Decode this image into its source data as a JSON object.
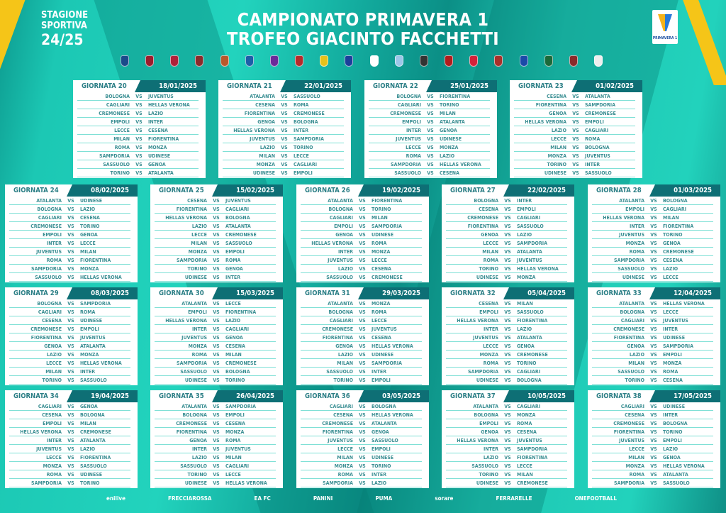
{
  "header": {
    "season_line1": "STAGIONE",
    "season_line2": "SPORTIVA",
    "season_years": "24/25",
    "title_line1": "CAMPIONATO PRIMAVERA 1",
    "title_line2": "TROFEO GIACINTO FACCHETTI",
    "logo_text": "PRIMAVERA 1"
  },
  "colors": {
    "background": "#1cc8b4",
    "dark": "#0e6f75",
    "accent": "#f5c518"
  },
  "crests": [
    {
      "name": "atalanta",
      "color": "#1b4a8a"
    },
    {
      "name": "bologna",
      "color": "#9b1c2c"
    },
    {
      "name": "cagliari",
      "color": "#b0203a"
    },
    {
      "name": "torino-or-cremonese",
      "color": "#8a2a2a"
    },
    {
      "name": "cremonese",
      "color": "#b8582b"
    },
    {
      "name": "empoli",
      "color": "#1b5fa8"
    },
    {
      "name": "fiorentina",
      "color": "#6b2a9a"
    },
    {
      "name": "genoa",
      "color": "#b52a2a"
    },
    {
      "name": "hellas-verona",
      "color": "#e6c21a"
    },
    {
      "name": "inter",
      "color": "#1a3f9a"
    },
    {
      "name": "juventus",
      "color": "#ffffff"
    },
    {
      "name": "lazio",
      "color": "#9cc7e8"
    },
    {
      "name": "lecce",
      "color": "#333333"
    },
    {
      "name": "milan",
      "color": "#b01c1c"
    },
    {
      "name": "monza",
      "color": "#d4213a"
    },
    {
      "name": "roma",
      "color": "#a8302a"
    },
    {
      "name": "sampdoria",
      "color": "#1b4aa8"
    },
    {
      "name": "sassuolo",
      "color": "#1a6a3a"
    },
    {
      "name": "torino",
      "color": "#8a2a2a"
    },
    {
      "name": "udinese",
      "color": "#eeeeee"
    }
  ],
  "vs": "VS",
  "rounds": [
    {
      "label": "GIORNATA 20",
      "date": "18/01/2025",
      "matches": [
        [
          "BOLOGNA",
          "JUVENTUS"
        ],
        [
          "CAGLIARI",
          "HELLAS VERONA"
        ],
        [
          "CREMONESE",
          "LAZIO"
        ],
        [
          "EMPOLI",
          "INTER"
        ],
        [
          "LECCE",
          "CESENA"
        ],
        [
          "MILAN",
          "FIORENTINA"
        ],
        [
          "ROMA",
          "MONZA"
        ],
        [
          "SAMPDORIA",
          "UDINESE"
        ],
        [
          "SASSUOLO",
          "GENOA"
        ],
        [
          "TORINO",
          "ATALANTA"
        ]
      ]
    },
    {
      "label": "GIORNATA 21",
      "date": "22/01/2025",
      "matches": [
        [
          "ATALANTA",
          "SASSUOLO"
        ],
        [
          "CESENA",
          "ROMA"
        ],
        [
          "FIORENTINA",
          "CREMONESE"
        ],
        [
          "GENOA",
          "BOLOGNA"
        ],
        [
          "HELLAS VERONA",
          "INTER"
        ],
        [
          "JUVENTUS",
          "SAMPDORIA"
        ],
        [
          "LAZIO",
          "TORINO"
        ],
        [
          "MILAN",
          "LECCE"
        ],
        [
          "MONZA",
          "CAGLIARI"
        ],
        [
          "UDINESE",
          "EMPOLI"
        ]
      ]
    },
    {
      "label": "GIORNATA 22",
      "date": "25/01/2025",
      "matches": [
        [
          "BOLOGNA",
          "FIORENTINA"
        ],
        [
          "CAGLIARI",
          "TORINO"
        ],
        [
          "CREMONESE",
          "MILAN"
        ],
        [
          "EMPOLI",
          "ATALANTA"
        ],
        [
          "INTER",
          "GENOA"
        ],
        [
          "JUVENTUS",
          "UDINESE"
        ],
        [
          "LECCE",
          "MONZA"
        ],
        [
          "ROMA",
          "LAZIO"
        ],
        [
          "SAMPDORIA",
          "HELLAS VERONA"
        ],
        [
          "SASSUOLO",
          "CESENA"
        ]
      ]
    },
    {
      "label": "GIORNATA 23",
      "date": "01/02/2025",
      "matches": [
        [
          "CESENA",
          "ATALANTA"
        ],
        [
          "FIORENTINA",
          "SAMPDORIA"
        ],
        [
          "GENOA",
          "CREMONESE"
        ],
        [
          "HELLAS VERONA",
          "EMPOLI"
        ],
        [
          "LAZIO",
          "CAGLIARI"
        ],
        [
          "LECCE",
          "ROMA"
        ],
        [
          "MILAN",
          "BOLOGNA"
        ],
        [
          "MONZA",
          "JUVENTUS"
        ],
        [
          "TORINO",
          "INTER"
        ],
        [
          "UDINESE",
          "SASSUOLO"
        ]
      ]
    },
    {
      "label": "GIORNATA 24",
      "date": "08/02/2025",
      "matches": [
        [
          "ATALANTA",
          "UDINESE"
        ],
        [
          "BOLOGNA",
          "LAZIO"
        ],
        [
          "CAGLIARI",
          "CESENA"
        ],
        [
          "CREMONESE",
          "TORINO"
        ],
        [
          "EMPOLI",
          "GENOA"
        ],
        [
          "INTER",
          "LECCE"
        ],
        [
          "JUVENTUS",
          "MILAN"
        ],
        [
          "ROMA",
          "FIORENTINA"
        ],
        [
          "SAMPDORIA",
          "MONZA"
        ],
        [
          "SASSUOLO",
          "HELLAS VERONA"
        ]
      ]
    },
    {
      "label": "GIORNATA 25",
      "date": "15/02/2025",
      "matches": [
        [
          "CESENA",
          "JUVENTUS"
        ],
        [
          "FIORENTINA",
          "CAGLIARI"
        ],
        [
          "HELLAS VERONA",
          "BOLOGNA"
        ],
        [
          "LAZIO",
          "ATALANTA"
        ],
        [
          "LECCE",
          "CREMONESE"
        ],
        [
          "MILAN",
          "SASSUOLO"
        ],
        [
          "MONZA",
          "EMPOLI"
        ],
        [
          "SAMPDORIA",
          "ROMA"
        ],
        [
          "TORINO",
          "GENOA"
        ],
        [
          "UDINESE",
          "INTER"
        ]
      ]
    },
    {
      "label": "GIORNATA 26",
      "date": "19/02/2025",
      "matches": [
        [
          "ATALANTA",
          "FIORENTINA"
        ],
        [
          "BOLOGNA",
          "TORINO"
        ],
        [
          "CAGLIARI",
          "MILAN"
        ],
        [
          "EMPOLI",
          "SAMPDORIA"
        ],
        [
          "GENOA",
          "UDINESE"
        ],
        [
          "HELLAS VERONA",
          "ROMA"
        ],
        [
          "INTER",
          "MONZA"
        ],
        [
          "JUVENTUS",
          "LECCE"
        ],
        [
          "LAZIO",
          "CESENA"
        ],
        [
          "SASSUOLO",
          "CREMONESE"
        ]
      ]
    },
    {
      "label": "GIORNATA 27",
      "date": "22/02/2025",
      "matches": [
        [
          "BOLOGNA",
          "INTER"
        ],
        [
          "CESENA",
          "EMPOLI"
        ],
        [
          "CREMONESE",
          "CAGLIARI"
        ],
        [
          "FIORENTINA",
          "SASSUOLO"
        ],
        [
          "GENOA",
          "LAZIO"
        ],
        [
          "LECCE",
          "SAMPDORIA"
        ],
        [
          "MILAN",
          "ATALANTA"
        ],
        [
          "ROMA",
          "JUVENTUS"
        ],
        [
          "TORINO",
          "HELLAS VERONA"
        ],
        [
          "UDINESE",
          "MONZA"
        ]
      ]
    },
    {
      "label": "GIORNATA 28",
      "date": "01/03/2025",
      "matches": [
        [
          "ATALANTA",
          "BOLOGNA"
        ],
        [
          "EMPOLI",
          "CAGLIARI"
        ],
        [
          "HELLAS VERONA",
          "MILAN"
        ],
        [
          "INTER",
          "FIORENTINA"
        ],
        [
          "JUVENTUS",
          "TORINO"
        ],
        [
          "MONZA",
          "GENOA"
        ],
        [
          "ROMA",
          "CREMONESE"
        ],
        [
          "SAMPDORIA",
          "CESENA"
        ],
        [
          "SASSUOLO",
          "LAZIO"
        ],
        [
          "UDINESE",
          "LECCE"
        ]
      ]
    },
    {
      "label": "GIORNATA 29",
      "date": "08/03/2025",
      "matches": [
        [
          "BOLOGNA",
          "SAMPDORIA"
        ],
        [
          "CAGLIARI",
          "ROMA"
        ],
        [
          "CESENA",
          "UDINESE"
        ],
        [
          "CREMONESE",
          "EMPOLI"
        ],
        [
          "FIORENTINA",
          "JUVENTUS"
        ],
        [
          "GENOA",
          "ATALANTA"
        ],
        [
          "LAZIO",
          "MONZA"
        ],
        [
          "LECCE",
          "HELLAS VERONA"
        ],
        [
          "MILAN",
          "INTER"
        ],
        [
          "TORINO",
          "SASSUOLO"
        ]
      ]
    },
    {
      "label": "GIORNATA 30",
      "date": "15/03/2025",
      "matches": [
        [
          "ATALANTA",
          "LECCE"
        ],
        [
          "EMPOLI",
          "FIORENTINA"
        ],
        [
          "HELLAS VERONA",
          "LAZIO"
        ],
        [
          "INTER",
          "CAGLIARI"
        ],
        [
          "JUVENTUS",
          "GENOA"
        ],
        [
          "MONZA",
          "CESENA"
        ],
        [
          "ROMA",
          "MILAN"
        ],
        [
          "SAMPDORIA",
          "CREMONESE"
        ],
        [
          "SASSUOLO",
          "BOLOGNA"
        ],
        [
          "UDINESE",
          "TORINO"
        ]
      ]
    },
    {
      "label": "GIORNATA 31",
      "date": "29/03/2025",
      "matches": [
        [
          "ATALANTA",
          "MONZA"
        ],
        [
          "BOLOGNA",
          "ROMA"
        ],
        [
          "CAGLIARI",
          "LECCE"
        ],
        [
          "CREMONESE",
          "JUVENTUS"
        ],
        [
          "FIORENTINA",
          "CESENA"
        ],
        [
          "GENOA",
          "HELLAS VERONA"
        ],
        [
          "LAZIO",
          "UDINESE"
        ],
        [
          "MILAN",
          "SAMPDORIA"
        ],
        [
          "SASSUOLO",
          "INTER"
        ],
        [
          "TORINO",
          "EMPOLI"
        ]
      ]
    },
    {
      "label": "GIORNATA 32",
      "date": "05/04/2025",
      "matches": [
        [
          "CESENA",
          "MILAN"
        ],
        [
          "EMPOLI",
          "SASSUOLO"
        ],
        [
          "HELLAS VERONA",
          "FIORENTINA"
        ],
        [
          "INTER",
          "LAZIO"
        ],
        [
          "JUVENTUS",
          "ATALANTA"
        ],
        [
          "LECCE",
          "GENOA"
        ],
        [
          "MONZA",
          "CREMONESE"
        ],
        [
          "ROMA",
          "TORINO"
        ],
        [
          "SAMPDORIA",
          "CAGLIARI"
        ],
        [
          "UDINESE",
          "BOLOGNA"
        ]
      ]
    },
    {
      "label": "GIORNATA 33",
      "date": "12/04/2025",
      "matches": [
        [
          "ATALANTA",
          "HELLAS VERONA"
        ],
        [
          "BOLOGNA",
          "LECCE"
        ],
        [
          "CAGLIARI",
          "JUVENTUS"
        ],
        [
          "CREMONESE",
          "INTER"
        ],
        [
          "FIORENTINA",
          "UDINESE"
        ],
        [
          "GENOA",
          "SAMPDORIA"
        ],
        [
          "LAZIO",
          "EMPOLI"
        ],
        [
          "MILAN",
          "MONZA"
        ],
        [
          "SASSUOLO",
          "ROMA"
        ],
        [
          "TORINO",
          "CESENA"
        ]
      ]
    },
    {
      "label": "GIORNATA 34",
      "date": "19/04/2025",
      "matches": [
        [
          "CAGLIARI",
          "GENOA"
        ],
        [
          "CESENA",
          "BOLOGNA"
        ],
        [
          "EMPOLI",
          "MILAN"
        ],
        [
          "HELLAS VERONA",
          "CREMONESE"
        ],
        [
          "INTER",
          "ATALANTA"
        ],
        [
          "JUVENTUS",
          "LAZIO"
        ],
        [
          "LECCE",
          "FIORENTINA"
        ],
        [
          "MONZA",
          "SASSUOLO"
        ],
        [
          "ROMA",
          "UDINESE"
        ],
        [
          "SAMPDORIA",
          "TORINO"
        ]
      ]
    },
    {
      "label": "GIORNATA 35",
      "date": "26/04/2025",
      "matches": [
        [
          "ATALANTA",
          "SAMPDORIA"
        ],
        [
          "BOLOGNA",
          "EMPOLI"
        ],
        [
          "CREMONESE",
          "CESENA"
        ],
        [
          "FIORENTINA",
          "MONZA"
        ],
        [
          "GENOA",
          "ROMA"
        ],
        [
          "INTER",
          "JUVENTUS"
        ],
        [
          "LAZIO",
          "MILAN"
        ],
        [
          "SASSUOLO",
          "CAGLIARI"
        ],
        [
          "TORINO",
          "LECCE"
        ],
        [
          "UDINESE",
          "HELLAS VERONA"
        ]
      ]
    },
    {
      "label": "GIORNATA 36",
      "date": "03/05/2025",
      "matches": [
        [
          "CAGLIARI",
          "BOLOGNA"
        ],
        [
          "CESENA",
          "HELLAS VERONA"
        ],
        [
          "CREMONESE",
          "ATALANTA"
        ],
        [
          "FIORENTINA",
          "GENOA"
        ],
        [
          "JUVENTUS",
          "SASSUOLO"
        ],
        [
          "LECCE",
          "EMPOLI"
        ],
        [
          "MILAN",
          "UDINESE"
        ],
        [
          "MONZA",
          "TORINO"
        ],
        [
          "ROMA",
          "INTER"
        ],
        [
          "SAMPDORIA",
          "LAZIO"
        ]
      ]
    },
    {
      "label": "GIORNATA 37",
      "date": "10/05/2025",
      "matches": [
        [
          "ATALANTA",
          "CAGLIARI"
        ],
        [
          "BOLOGNA",
          "MONZA"
        ],
        [
          "EMPOLI",
          "ROMA"
        ],
        [
          "GENOA",
          "CESENA"
        ],
        [
          "HELLAS VERONA",
          "JUVENTUS"
        ],
        [
          "INTER",
          "SAMPDORIA"
        ],
        [
          "LAZIO",
          "FIORENTINA"
        ],
        [
          "SASSUOLO",
          "LECCE"
        ],
        [
          "TORINO",
          "MILAN"
        ],
        [
          "UDINESE",
          "CREMONESE"
        ]
      ]
    },
    {
      "label": "GIORNATA 38",
      "date": "17/05/2025",
      "matches": [
        [
          "CAGLIARI",
          "UDINESE"
        ],
        [
          "CESENA",
          "INTER"
        ],
        [
          "CREMONESE",
          "BOLOGNA"
        ],
        [
          "FIORENTINA",
          "TORINO"
        ],
        [
          "JUVENTUS",
          "EMPOLI"
        ],
        [
          "LECCE",
          "LAZIO"
        ],
        [
          "MILAN",
          "GENOA"
        ],
        [
          "MONZA",
          "HELLAS VERONA"
        ],
        [
          "ROMA",
          "ATALANTA"
        ],
        [
          "SAMPDORIA",
          "SASSUOLO"
        ]
      ]
    }
  ],
  "sponsors": [
    "enilive",
    "FRECCIAROSSA",
    "EA FC",
    "PANINI",
    "PUMA",
    "sorare",
    "FERRARELLE",
    "ONEFOOTBALL"
  ]
}
